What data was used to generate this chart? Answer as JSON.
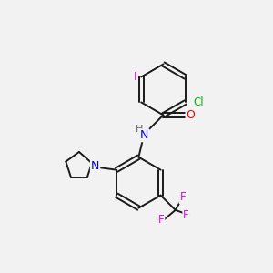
{
  "bg_color": "#f2f2f2",
  "bond_color": "#1a1a1a",
  "atoms": {
    "Cl": {
      "color": "#00bb00"
    },
    "I": {
      "color": "#cc00cc"
    },
    "N": {
      "color": "#0000ee"
    },
    "H": {
      "color": "#666666"
    },
    "O": {
      "color": "#ee0000"
    },
    "F": {
      "color": "#ee00ee"
    }
  },
  "figsize": [
    3.0,
    3.0
  ],
  "dpi": 100,
  "lw": 1.4,
  "r_hex": 0.95,
  "r_pyr": 0.52
}
